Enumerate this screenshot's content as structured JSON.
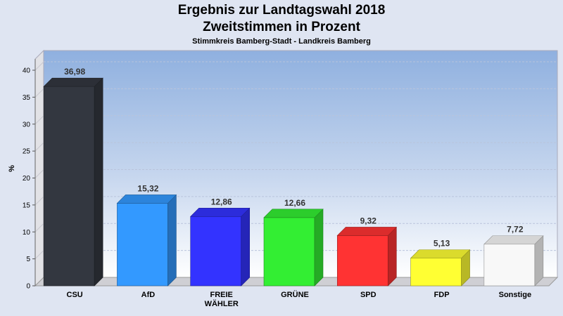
{
  "chart_data": {
    "type": "bar",
    "title": "Ergebnis zur Landtagswahl 2018",
    "title_line2": "Zweitstimmen in Prozent",
    "subtitle": "Stimmkreis Bamberg-Stadt - Landkreis Bamberg",
    "ylabel": "%",
    "ylim": [
      0,
      40
    ],
    "yticks": [
      0,
      5,
      10,
      15,
      20,
      25,
      30,
      35,
      40
    ],
    "grid": true,
    "categories": [
      [
        "CSU"
      ],
      [
        "AfD"
      ],
      [
        "FREIE",
        "WÄHLER"
      ],
      [
        "GRÜNE"
      ],
      [
        "SPD"
      ],
      [
        "FDP"
      ],
      [
        "Sonstige"
      ]
    ],
    "values": [
      36.98,
      15.32,
      12.86,
      12.66,
      9.32,
      5.13,
      7.72
    ],
    "value_labels": [
      "36,98",
      "15,32",
      "12,86",
      "12,66",
      "9,32",
      "5,13",
      "7,72"
    ],
    "colors": [
      "#333740",
      "#3399ff",
      "#3333ff",
      "#33ee33",
      "#ff3333",
      "#ffff33",
      "#f8f8f8"
    ]
  }
}
